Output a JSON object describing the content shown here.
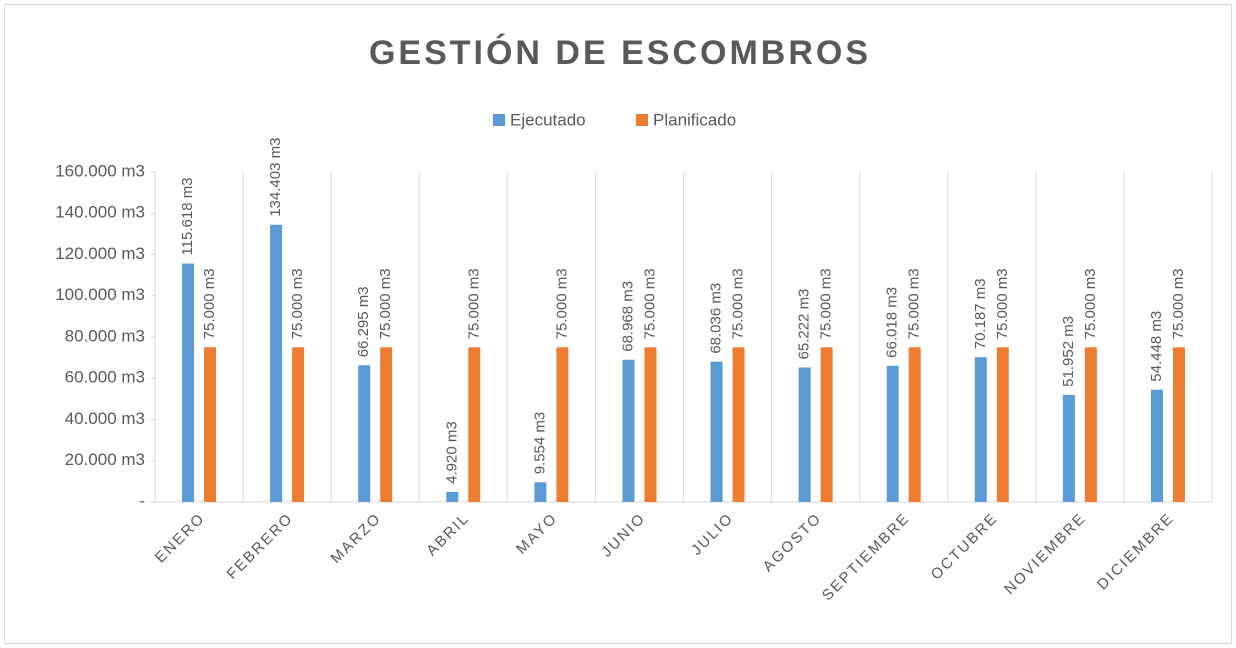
{
  "chart_data": {
    "type": "bar",
    "title": "GESTIÓN DE ESCOMBROS",
    "categories": [
      "ENERO",
      "FEBRERO",
      "MARZO",
      "ABRIL",
      "MAYO",
      "JUNIO",
      "JULIO",
      "AGOSTO",
      "SEPTIEMBRE",
      "OCTUBRE",
      "NOVIEMBRE",
      "DICIEMBRE"
    ],
    "series": [
      {
        "name": "Ejecutado",
        "color": "#5b9bd5",
        "values": [
          115618,
          134403,
          66295,
          4920,
          9554,
          68968,
          68036,
          65222,
          66018,
          70187,
          51952,
          54448
        ],
        "value_labels": [
          "115.618 m3",
          "134.403 m3",
          "66.295 m3",
          "4.920 m3",
          "9.554 m3",
          "68.968 m3",
          "68.036 m3",
          "65.222 m3",
          "66.018 m3",
          "70.187 m3",
          "51.952 m3",
          "54.448 m3"
        ]
      },
      {
        "name": "Planificado",
        "color": "#ed7d31",
        "values": [
          75000,
          75000,
          75000,
          75000,
          75000,
          75000,
          75000,
          75000,
          75000,
          75000,
          75000,
          75000
        ],
        "value_labels": [
          "75.000 m3",
          "75.000 m3",
          "75.000 m3",
          "75.000 m3",
          "75.000 m3",
          "75.000 m3",
          "75.000 m3",
          "75.000 m3",
          "75.000 m3",
          "75.000 m3",
          "75.000 m3",
          "75.000 m3"
        ]
      }
    ],
    "ylim": [
      0,
      160000
    ],
    "yticks": [
      {
        "value": 0,
        "label": "-"
      },
      {
        "value": 20000,
        "label": "20.000 m3"
      },
      {
        "value": 40000,
        "label": "40.000 m3"
      },
      {
        "value": 60000,
        "label": "60.000 m3"
      },
      {
        "value": 80000,
        "label": "80.000 m3"
      },
      {
        "value": 100000,
        "label": "100.000 m3"
      },
      {
        "value": 120000,
        "label": "120.000 m3"
      },
      {
        "value": 140000,
        "label": "140.000 m3"
      },
      {
        "value": 160000,
        "label": "160.000 m3"
      }
    ],
    "legend": "top"
  }
}
